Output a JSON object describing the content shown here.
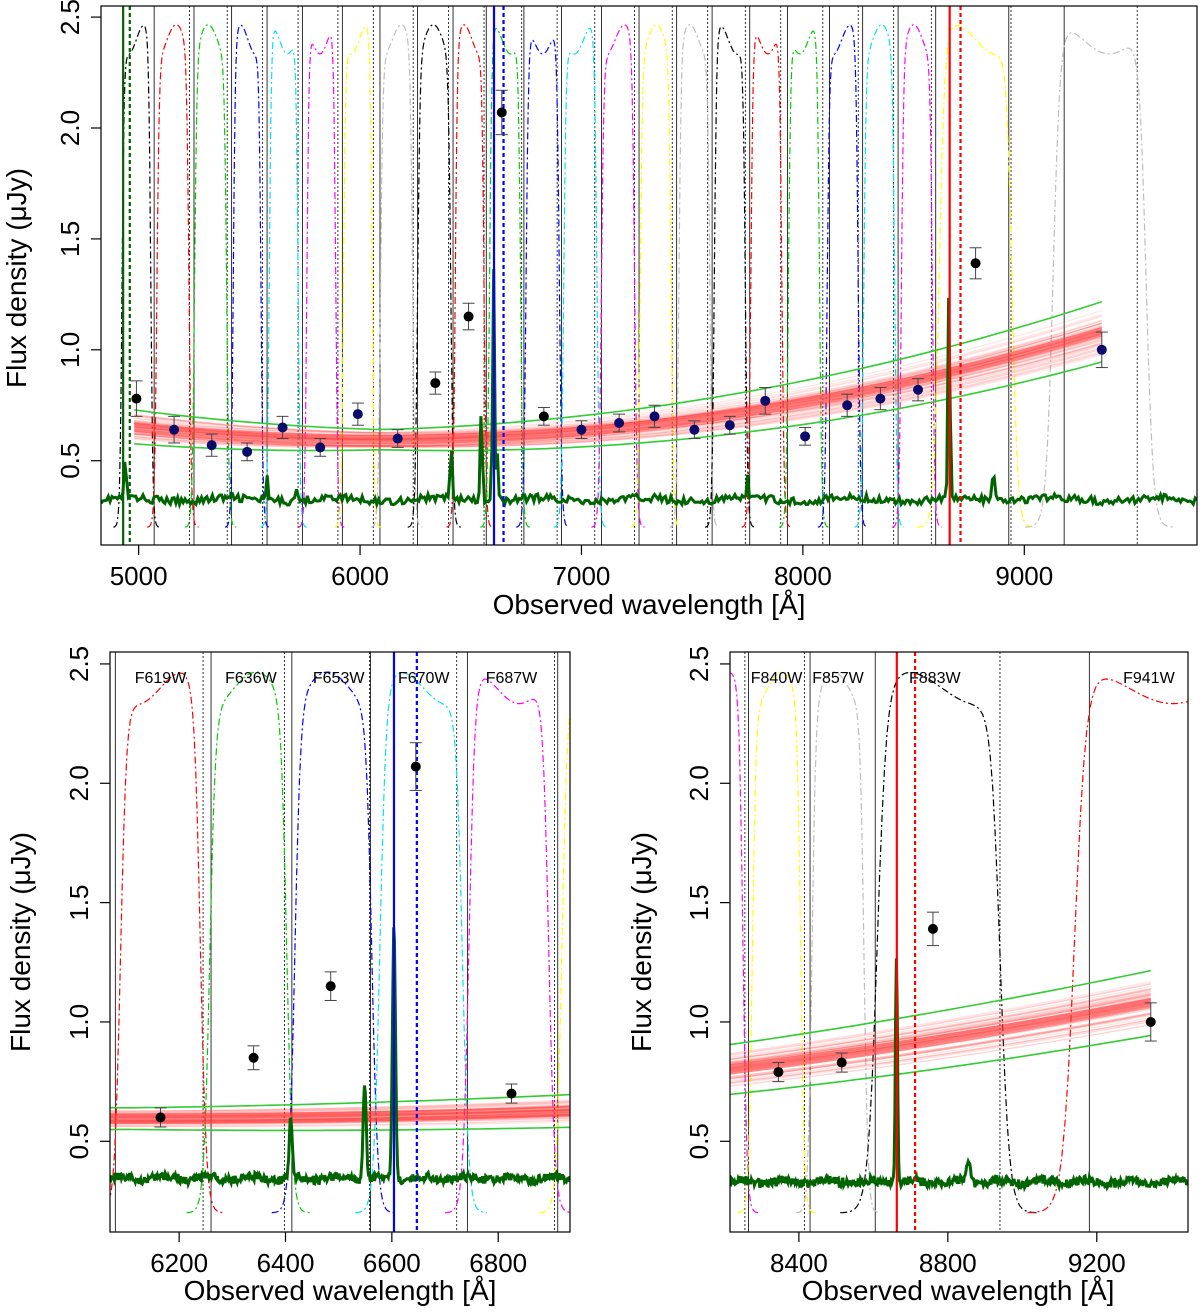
{
  "chart_data": [
    {
      "type": "scatter",
      "id": "top",
      "title": "",
      "xlabel": "Observed wavelength [Å]",
      "ylabel": "Flux density (μJy)",
      "xlim": [
        4830,
        9780
      ],
      "ylim": [
        0.12,
        2.55
      ],
      "xticks": [
        5000,
        6000,
        7000,
        8000,
        9000
      ],
      "yticks": [
        0.5,
        1.0,
        1.5,
        2.0,
        2.5
      ],
      "xtick_labels": [
        "5000",
        "6000",
        "7000",
        "8000",
        "9000"
      ],
      "ytick_labels": [
        "0.5",
        "1.0",
        "1.5",
        "2.0",
        "2.5"
      ],
      "filter_labels": [],
      "points_black": [
        {
          "x": 4990,
          "y": 0.78,
          "err": 0.08
        },
        {
          "x": 6340,
          "y": 0.85,
          "err": 0.05
        },
        {
          "x": 6490,
          "y": 1.15,
          "err": 0.06
        },
        {
          "x": 6640,
          "y": 2.07,
          "err": 0.1
        },
        {
          "x": 6830,
          "y": 0.7,
          "err": 0.04
        },
        {
          "x": 8780,
          "y": 1.39,
          "err": 0.07
        }
      ],
      "points_navy": [
        {
          "x": 5160,
          "y": 0.64,
          "err": 0.06
        },
        {
          "x": 5330,
          "y": 0.57,
          "err": 0.05
        },
        {
          "x": 5490,
          "y": 0.54,
          "err": 0.04
        },
        {
          "x": 5650,
          "y": 0.65,
          "err": 0.05
        },
        {
          "x": 5820,
          "y": 0.56,
          "err": 0.04
        },
        {
          "x": 5990,
          "y": 0.71,
          "err": 0.05
        },
        {
          "x": 6170,
          "y": 0.6,
          "err": 0.04
        },
        {
          "x": 7000,
          "y": 0.64,
          "err": 0.04
        },
        {
          "x": 7170,
          "y": 0.67,
          "err": 0.04
        },
        {
          "x": 7330,
          "y": 0.7,
          "err": 0.05
        },
        {
          "x": 7510,
          "y": 0.64,
          "err": 0.04
        },
        {
          "x": 7670,
          "y": 0.66,
          "err": 0.04
        },
        {
          "x": 7830,
          "y": 0.77,
          "err": 0.06
        },
        {
          "x": 8010,
          "y": 0.61,
          "err": 0.04
        },
        {
          "x": 8200,
          "y": 0.75,
          "err": 0.05
        },
        {
          "x": 8350,
          "y": 0.78,
          "err": 0.05
        },
        {
          "x": 8520,
          "y": 0.82,
          "err": 0.05
        },
        {
          "x": 9350,
          "y": 1.0,
          "err": 0.08
        }
      ],
      "model": {
        "x0": 6100,
        "base": 0.595,
        "quad": 0.046,
        "spread": 0.055,
        "xmin": 4980,
        "xmax": 9350
      },
      "spectrum": {
        "base": 0.325,
        "lines": [
          {
            "x": 4940,
            "h": 0.2,
            "w": 6
          },
          {
            "x": 5580,
            "h": 0.1,
            "w": 6
          },
          {
            "x": 5710,
            "h": 0.07,
            "w": 6
          },
          {
            "x": 6411,
            "h": 0.27,
            "w": 6
          },
          {
            "x": 6548,
            "h": 0.43,
            "w": 6
          },
          {
            "x": 6603,
            "h": 1.07,
            "w": 6
          },
          {
            "x": 6620,
            "h": 0.22,
            "w": 5
          },
          {
            "x": 8660,
            "h": 1.02,
            "w": 6
          },
          {
            "x": 7750,
            "h": 0.1,
            "w": 6
          },
          {
            "x": 8860,
            "h": 0.12,
            "w": 10
          }
        ]
      },
      "vlines_solid": [
        5070,
        5250,
        5420,
        5580,
        5740,
        5920,
        6090,
        6260,
        6420,
        6570,
        6740,
        6910,
        7090,
        7260,
        7430,
        7590,
        7760,
        7930,
        8120,
        8270,
        8430,
        8600,
        8930,
        9180
      ],
      "vlines_dotted": [
        5230,
        5400,
        5560,
        5720,
        5900,
        6060,
        6240,
        6400,
        6560,
        6730,
        6890,
        7060,
        7240,
        7410,
        7570,
        7740,
        7900,
        8090,
        8250,
        8410,
        8580,
        8940,
        9510
      ],
      "marker_lines": [
        {
          "x": 4930,
          "color": "#006400",
          "style": "solid"
        },
        {
          "x": 4960,
          "color": "#006400",
          "style": "dotted"
        },
        {
          "x": 6605,
          "color": "#0000ff",
          "style": "solid"
        },
        {
          "x": 6648,
          "color": "#0000ff",
          "style": "dotted"
        },
        {
          "x": 8663,
          "color": "#ff0000",
          "style": "solid"
        },
        {
          "x": 8712,
          "color": "#ff0000",
          "style": "dotted"
        }
      ],
      "filters": [
        {
          "center": 4990,
          "width": 130,
          "color": "#000000"
        },
        {
          "center": 5155,
          "width": 145,
          "color": "#ff0000"
        },
        {
          "center": 5325,
          "width": 145,
          "color": "#00cc00"
        },
        {
          "center": 5490,
          "width": 125,
          "color": "#0000ff"
        },
        {
          "center": 5655,
          "width": 130,
          "color": "#00e5ee"
        },
        {
          "center": 5825,
          "width": 130,
          "color": "#ff00ff"
        },
        {
          "center": 5990,
          "width": 130,
          "color": "#ffff00"
        },
        {
          "center": 6165,
          "width": 145,
          "color": "#bebebe"
        },
        {
          "center": 6335,
          "width": 150,
          "color": "#000000"
        },
        {
          "center": 6495,
          "width": 130,
          "color": "#ff0000"
        },
        {
          "center": 6655,
          "width": 140,
          "color": "#00cc00"
        },
        {
          "center": 6825,
          "width": 150,
          "color": "#0000ff"
        },
        {
          "center": 6995,
          "width": 150,
          "color": "#00e5ee"
        },
        {
          "center": 7165,
          "width": 150,
          "color": "#ff00ff"
        },
        {
          "center": 7335,
          "width": 140,
          "color": "#ffff00"
        },
        {
          "center": 7510,
          "width": 140,
          "color": "#bebebe"
        },
        {
          "center": 7670,
          "width": 140,
          "color": "#000000"
        },
        {
          "center": 7835,
          "width": 140,
          "color": "#ff0000"
        },
        {
          "center": 8005,
          "width": 140,
          "color": "#00cc00"
        },
        {
          "center": 8180,
          "width": 140,
          "color": "#0000ff"
        },
        {
          "center": 8345,
          "width": 140,
          "color": "#00e5ee"
        },
        {
          "center": 8515,
          "width": 140,
          "color": "#ff00ff"
        },
        {
          "center": 8780,
          "width": 330,
          "color": "#ffff00"
        },
        {
          "center": 9340,
          "width": 420,
          "color": "#bebebe"
        }
      ]
    },
    {
      "type": "scatter",
      "id": "bottom-left",
      "title": "",
      "xlabel": "Observed wavelength [Å]",
      "ylabel": "Flux density (μJy)",
      "xlim": [
        6070,
        6935
      ],
      "ylim": [
        0.12,
        2.55
      ],
      "xticks": [
        6200,
        6400,
        6600,
        6800
      ],
      "yticks": [
        0.5,
        1.0,
        1.5,
        2.0,
        2.5
      ],
      "xtick_labels": [
        "6200",
        "6400",
        "6600",
        "6800"
      ],
      "ytick_labels": [
        "0.5",
        "1.0",
        "1.5",
        "2.0",
        "2.5"
      ],
      "filter_labels": [
        {
          "text": "F619W",
          "x": 6165
        },
        {
          "text": "F636W",
          "x": 6335
        },
        {
          "text": "F653W",
          "x": 6500
        },
        {
          "text": "F670W",
          "x": 6660
        },
        {
          "text": "F687W",
          "x": 6825
        }
      ],
      "points_black": [
        {
          "x": 6165,
          "y": 0.6,
          "err": 0.04
        },
        {
          "x": 6340,
          "y": 0.85,
          "err": 0.05
        },
        {
          "x": 6485,
          "y": 1.15,
          "err": 0.06
        },
        {
          "x": 6645,
          "y": 2.07,
          "err": 0.1
        },
        {
          "x": 6825,
          "y": 0.7,
          "err": 0.04
        }
      ],
      "points_navy": [],
      "model": {
        "x0": 6100,
        "base": 0.595,
        "quad": 0.046,
        "spread": 0.055,
        "xmin": 6070,
        "xmax": 6935
      },
      "spectrum": {
        "base": 0.345,
        "lines": [
          {
            "x": 6410,
            "h": 0.25,
            "w": 4
          },
          {
            "x": 6549,
            "h": 0.4,
            "w": 4
          },
          {
            "x": 6604,
            "h": 1.06,
            "w": 4
          }
        ]
      },
      "vlines_solid": [
        6080,
        6260,
        6412,
        6560,
        6742,
        6912
      ],
      "vlines_dotted": [
        6245,
        6398,
        6558,
        6722,
        6906
      ],
      "marker_lines": [
        {
          "x": 6604,
          "color": "#0000ff",
          "style": "solid"
        },
        {
          "x": 6647,
          "color": "#0000ff",
          "style": "dotted"
        }
      ],
      "filters": [
        {
          "center": 6165,
          "width": 150,
          "color": "#ff0000"
        },
        {
          "center": 6330,
          "width": 145,
          "color": "#00cc00"
        },
        {
          "center": 6490,
          "width": 145,
          "color": "#0000ff"
        },
        {
          "center": 6655,
          "width": 155,
          "color": "#00e5ee"
        },
        {
          "center": 6820,
          "width": 150,
          "color": "#ff00ff"
        },
        {
          "center": 6990,
          "width": 140,
          "color": "#ffff00"
        }
      ]
    },
    {
      "type": "scatter",
      "id": "bottom-right",
      "title": "",
      "xlabel": "Observed wavelength [Å]",
      "ylabel": "Flux density (μJy)",
      "xlim": [
        8215,
        9445
      ],
      "ylim": [
        0.12,
        2.55
      ],
      "xticks": [
        8400,
        8800,
        9200
      ],
      "yticks": [
        0.5,
        1.0,
        1.5,
        2.0,
        2.5
      ],
      "xtick_labels": [
        "8400",
        "8800",
        "9200"
      ],
      "ytick_labels": [
        "0.5",
        "1.0",
        "1.5",
        "2.0",
        "2.5"
      ],
      "filter_labels": [
        {
          "text": "F840W",
          "x": 8340
        },
        {
          "text": "F857W",
          "x": 8505
        },
        {
          "text": "F883W",
          "x": 8765
        },
        {
          "text": "F941W",
          "x": 9340
        }
      ],
      "points_black": [
        {
          "x": 8345,
          "y": 0.79,
          "err": 0.04
        },
        {
          "x": 8515,
          "y": 0.83,
          "err": 0.04
        },
        {
          "x": 8760,
          "y": 1.39,
          "err": 0.07
        },
        {
          "x": 9345,
          "y": 1.0,
          "err": 0.08
        }
      ],
      "points_navy": [],
      "model": {
        "x0": 6100,
        "base": 0.595,
        "quad": 0.046,
        "spread": 0.055,
        "xmin": 8215,
        "xmax": 9345
      },
      "spectrum": {
        "base": 0.33,
        "lines": [
          {
            "x": 8662,
            "h": 0.95,
            "w": 4
          },
          {
            "x": 8855,
            "h": 0.08,
            "w": 8
          }
        ]
      },
      "vlines_solid": [
        8265,
        8430,
        8605,
        9180
      ],
      "vlines_dotted": [
        8255,
        8415,
        8940
      ],
      "marker_lines": [
        {
          "x": 8663,
          "color": "#ff0000",
          "style": "solid"
        },
        {
          "x": 8712,
          "color": "#ff0000",
          "style": "dotted"
        }
      ],
      "filters": [
        {
          "center": 8180,
          "width": 140,
          "color": "#ff00ff"
        },
        {
          "center": 8340,
          "width": 130,
          "color": "#ffff00"
        },
        {
          "center": 8505,
          "width": 140,
          "color": "#bebebe"
        },
        {
          "center": 8775,
          "width": 330,
          "color": "#000000"
        },
        {
          "center": 9350,
          "width": 420,
          "color": "#ff0000"
        }
      ]
    }
  ]
}
